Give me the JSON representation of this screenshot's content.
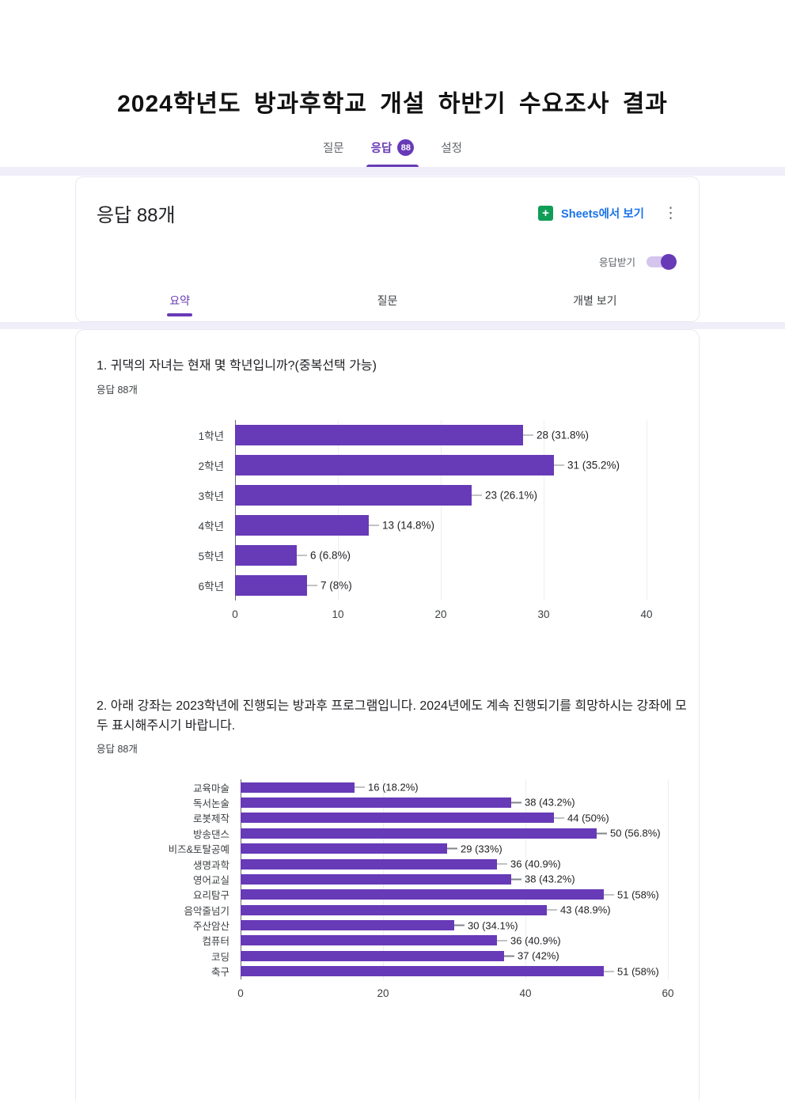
{
  "page": {
    "title": "2024학년도 방과후학교 개설 하반기 수요조사 결과"
  },
  "nav_tabs": {
    "questions": "질문",
    "responses": "응답",
    "badge": "88",
    "settings": "설정"
  },
  "header": {
    "title": "응답 88개",
    "sheets_link": "Sheets에서 보기",
    "accepting_label": "응답받기",
    "accepting_on": true
  },
  "sub_tabs": [
    {
      "label": "요약",
      "active": true
    },
    {
      "label": "질문",
      "active": false
    },
    {
      "label": "개별 보기",
      "active": false
    }
  ],
  "questions": [
    {
      "title": "1. 귀댁의 자녀는 현재 몇 학년입니까?(중복선택 가능)",
      "meta": "응답 88개"
    },
    {
      "title": "2. 아래 강좌는 2023학년에 진행되는 방과후 프로그램입니다. 2024년에도 계속 진행되기를 희망하시는 강좌에 모두 표시해주시기 바랍니다.",
      "meta": "응답 88개"
    }
  ],
  "colors": {
    "accent": "#673ab7",
    "bar": "#673ab7",
    "link_blue": "#1a73e8",
    "sheets_green": "#0f9d58",
    "page_strip": "#f0eef8"
  },
  "chart_data": [
    {
      "type": "bar",
      "orientation": "horizontal",
      "title": "1. 귀댁의 자녀는 현재 몇 학년입니까?(중복선택 가능)",
      "categories": [
        "1학년",
        "2학년",
        "3학년",
        "4학년",
        "5학년",
        "6학년"
      ],
      "values": [
        28,
        31,
        23,
        13,
        6,
        7
      ],
      "value_labels": [
        "28 (31.8%)",
        "31 (35.2%)",
        "23 (26.1%)",
        "13 (14.8%)",
        "6 (6.8%)",
        "7 (8%)"
      ],
      "xlim": [
        0,
        40
      ],
      "ticks": [
        0,
        10,
        20,
        30,
        40
      ],
      "grid": true,
      "bar_color": "#673ab7",
      "legend": "none"
    },
    {
      "type": "bar",
      "orientation": "horizontal",
      "title": "2. 아래 강좌는 2023학년에 진행되는 방과후 프로그램입니다. 2024년에도 계속 진행되기를 희망하시는 강좌에 모두 표시해주시기 바랍니다.",
      "categories": [
        "교육마술",
        "독서논술",
        "로봇제작",
        "방송댄스",
        "비즈&토탈공예",
        "생명과학",
        "영어교실",
        "요리탐구",
        "음악줄넘기",
        "주산암산",
        "컴퓨터",
        "코딩",
        "축구"
      ],
      "values": [
        16,
        38,
        44,
        50,
        29,
        36,
        38,
        51,
        43,
        30,
        36,
        37,
        51
      ],
      "value_labels": [
        "16 (18.2%)",
        "38 (43.2%)",
        "44 (50%)",
        "50 (56.8%)",
        "29 (33%)",
        "36 (40.9%)",
        "38 (43.2%)",
        "51 (58%)",
        "43 (48.9%)",
        "30 (34.1%)",
        "36 (40.9%)",
        "37 (42%)",
        "51 (58%)"
      ],
      "xlim": [
        0,
        60
      ],
      "ticks": [
        0,
        20,
        40,
        60
      ],
      "grid": true,
      "bar_color": "#673ab7",
      "legend": "none"
    }
  ]
}
